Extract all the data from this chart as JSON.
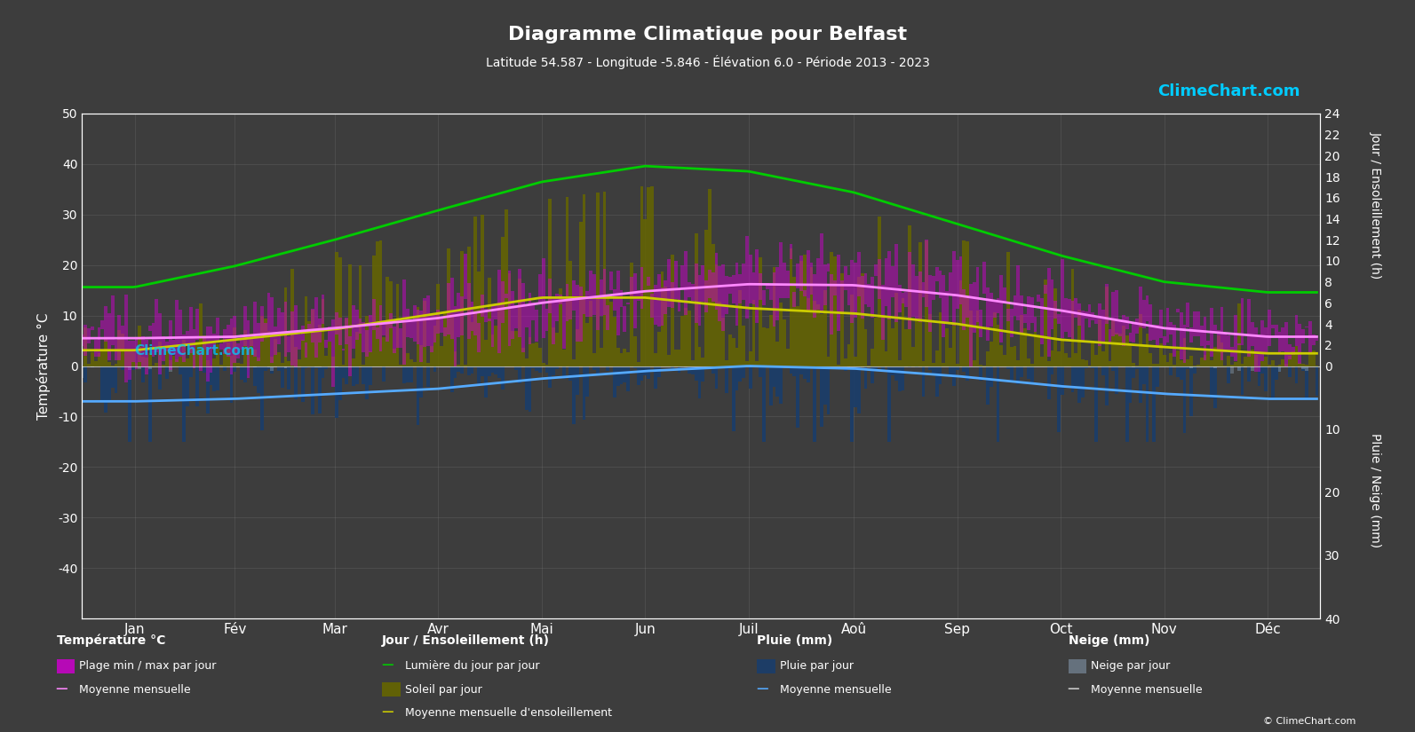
{
  "title": "Diagramme Climatique pour Belfast",
  "subtitle": "Latitude 54.587 - Longitude -5.846 - Élévation 6.0 - Période 2013 - 2023",
  "bg_color": "#3d3d3d",
  "text_color": "#ffffff",
  "grid_color": "#888888",
  "months": [
    "Jan",
    "Fév",
    "Mar",
    "Avr",
    "Mai",
    "Jun",
    "Juil",
    "Aoû",
    "Sep",
    "Oct",
    "Nov",
    "Déc"
  ],
  "days_per_month": [
    31,
    28,
    31,
    30,
    31,
    30,
    31,
    31,
    30,
    31,
    30,
    31
  ],
  "temp_ylim_min": -50,
  "temp_ylim_max": 50,
  "sun_max": 24,
  "rain_max": 40,
  "temp_mean_monthly": [
    5.5,
    5.8,
    7.5,
    9.5,
    12.5,
    14.8,
    16.2,
    16.0,
    14.0,
    11.0,
    7.5,
    5.8
  ],
  "temp_min_mean_monthly": [
    -7.0,
    -6.5,
    -5.5,
    -4.5,
    -2.5,
    -1.0,
    0.0,
    -0.5,
    -2.0,
    -4.0,
    -5.5,
    -6.5
  ],
  "temp_min_daily_mean": [
    2.5,
    2.8,
    3.8,
    5.2,
    7.8,
    10.2,
    12.0,
    11.8,
    10.0,
    7.5,
    4.5,
    3.0
  ],
  "temp_max_daily_mean": [
    7.5,
    7.8,
    9.5,
    12.0,
    15.5,
    17.8,
    19.5,
    19.5,
    17.0,
    13.5,
    9.5,
    7.8
  ],
  "daylight_monthly": [
    7.5,
    9.5,
    12.0,
    14.8,
    17.5,
    19.0,
    18.5,
    16.5,
    13.5,
    10.5,
    8.0,
    7.0
  ],
  "sunshine_mean_monthly": [
    1.5,
    2.5,
    3.5,
    5.0,
    6.5,
    6.5,
    5.5,
    5.0,
    4.0,
    2.5,
    1.8,
    1.2
  ],
  "rain_daily_mean_mm": [
    2.2,
    2.0,
    1.8,
    1.6,
    1.8,
    2.0,
    2.2,
    2.5,
    2.8,
    3.0,
    2.5,
    2.3
  ],
  "snow_daily_mean_mm": [
    0.3,
    0.2,
    0.05,
    0.0,
    0.0,
    0.0,
    0.0,
    0.0,
    0.0,
    0.0,
    0.05,
    0.2
  ],
  "color_temp_range": "#cc00cc",
  "color_temp_mean": "#ff88ff",
  "color_temp_min_mean": "#55aaff",
  "color_daylight": "#00cc00",
  "color_sunshine_bar": "#666600",
  "color_sunshine_mean": "#cccc00",
  "color_rain_bar": "#1a3d6b",
  "color_snow_bar": "#778899",
  "color_rain_mean": "#55aaff",
  "color_snow_mean": "#cccccc",
  "logo_color": "#00ccff",
  "ylabel_left": "Température °C",
  "ylabel_right_top": "Jour / Ensoleillement (h)",
  "ylabel_right_bottom": "Pluie / Neige (mm)"
}
